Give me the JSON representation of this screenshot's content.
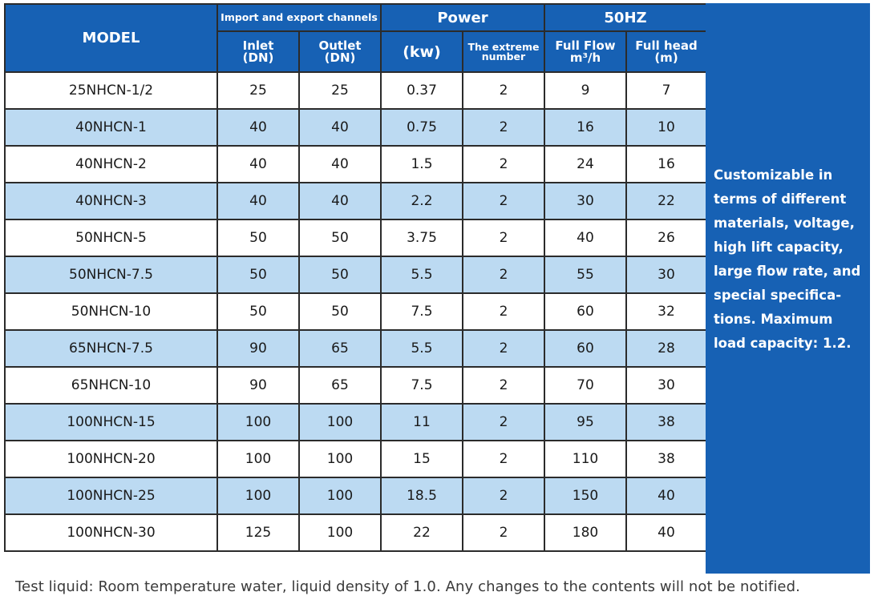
{
  "header": {
    "model": "MODEL",
    "channels": "Import and export channels",
    "power": "Power",
    "freq": "50HZ",
    "inlet": "Inlet\n(DN)",
    "outlet": "Outlet\n(DN)",
    "kw": "(kw)",
    "extreme": "The extreme number",
    "flow": "Full Flow\nm³/h",
    "head": "Full head\n(m)"
  },
  "rows": [
    [
      "25NHCN-1/2",
      "25",
      "25",
      "0.37",
      "2",
      "9",
      "7"
    ],
    [
      "40NHCN-1",
      "40",
      "40",
      "0.75",
      "2",
      "16",
      "10"
    ],
    [
      "40NHCN-2",
      "40",
      "40",
      "1.5",
      "2",
      "24",
      "16"
    ],
    [
      "40NHCN-3",
      "40",
      "40",
      "2.2",
      "2",
      "30",
      "22"
    ],
    [
      "50NHCN-5",
      "50",
      "50",
      "3.75",
      "2",
      "40",
      "26"
    ],
    [
      "50NHCN-7.5",
      "50",
      "50",
      "5.5",
      "2",
      "55",
      "30"
    ],
    [
      "50NHCN-10",
      "50",
      "50",
      "7.5",
      "2",
      "60",
      "32"
    ],
    [
      "65NHCN-7.5",
      "90",
      "65",
      "5.5",
      "2",
      "60",
      "28"
    ],
    [
      "65NHCN-10",
      "90",
      "65",
      "7.5",
      "2",
      "70",
      "30"
    ],
    [
      "100NHCN-15",
      "100",
      "100",
      "11",
      "2",
      "95",
      "38"
    ],
    [
      "100NHCN-20",
      "100",
      "100",
      "15",
      "2",
      "110",
      "38"
    ],
    [
      "100NHCN-25",
      "100",
      "100",
      "18.5",
      "2",
      "150",
      "40"
    ],
    [
      "100NHCN-30",
      "125",
      "100",
      "22",
      "2",
      "180",
      "40"
    ]
  ],
  "side_note": "Customizable in terms of different materials, voltage, high lift capacity, large flow rate, and special specifica-tions. Maximum load capacity: 1.2.",
  "footer": "Test liquid: Room temperature water, liquid density of 1.0. Any changes to the contents will not be notified.",
  "colors": {
    "header_blue": "#1761b4",
    "row_alt": "#bcdaf2",
    "row_base": "#ffffff"
  }
}
